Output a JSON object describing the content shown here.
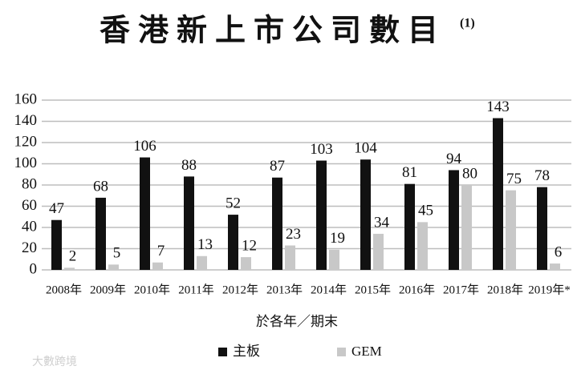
{
  "chart_data": {
    "type": "bar",
    "title": "香港新上市公司數目",
    "title_note": "(1)",
    "x_label": "於各年／期末",
    "watermark": "大數跨境",
    "categories": [
      "2008年",
      "2009年",
      "2010年",
      "2011年",
      "2012年",
      "2013年",
      "2014年",
      "2015年",
      "2016年",
      "2017年",
      "2018年",
      "2019年*"
    ],
    "series": [
      {
        "name": "主板",
        "color": "#111111",
        "values": [
          47,
          68,
          106,
          88,
          52,
          87,
          103,
          104,
          81,
          94,
          143,
          78
        ]
      },
      {
        "name": "GEM",
        "color": "#c8c8c8",
        "values": [
          2,
          5,
          7,
          13,
          12,
          23,
          19,
          34,
          45,
          80,
          75,
          6
        ]
      }
    ],
    "ylim": [
      0,
      160
    ],
    "yticks": [
      0,
      20,
      40,
      60,
      80,
      100,
      120,
      140,
      160
    ],
    "grid": true
  }
}
